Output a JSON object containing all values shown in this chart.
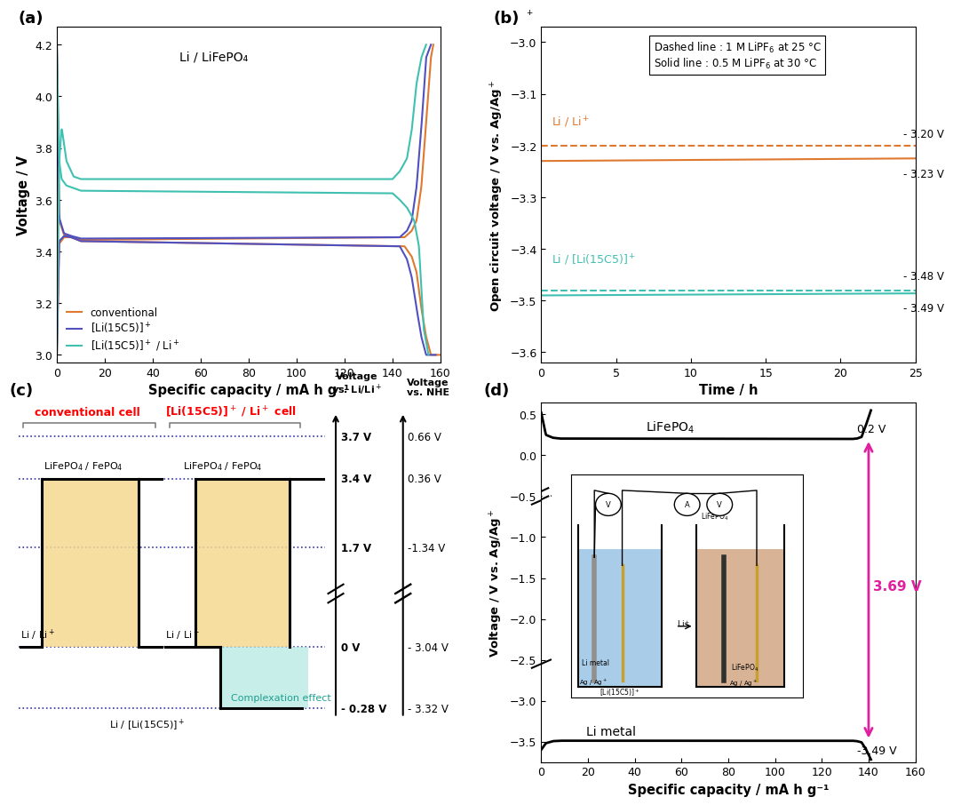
{
  "fig_width": 10.8,
  "fig_height": 8.9,
  "panel_a": {
    "xlabel": "Specific capacity / mA h g⁻¹",
    "ylabel": "Voltage / V",
    "xlim": [
      0,
      160
    ],
    "ylim": [
      2.97,
      4.27
    ],
    "xticks": [
      0,
      20,
      40,
      60,
      80,
      100,
      120,
      140,
      160
    ],
    "yticks": [
      3.0,
      3.2,
      3.4,
      3.6,
      3.8,
      4.0,
      4.2
    ],
    "conv_color": "#E07830",
    "li15c5_color": "#5050C0",
    "li15c5_li_color": "#40C0B0",
    "title_text": "Li / LiFePO₄"
  },
  "panel_b": {
    "xlabel": "Time / h",
    "ylabel": "Open circuit voltage / V vs. Ag/Ag",
    "xlim": [
      0,
      25
    ],
    "ylim": [
      -3.62,
      -2.97
    ],
    "xticks": [
      0,
      5,
      10,
      15,
      20,
      25
    ],
    "yticks": [
      -3.6,
      -3.5,
      -3.4,
      -3.3,
      -3.2,
      -3.1,
      -3.0
    ],
    "orange_color": "#E07830",
    "teal_color": "#40C0B0",
    "li_liplus_dashed_y": -3.2,
    "li_liplus_solid_y": -3.23,
    "li_15c5_dashed_y": -3.48,
    "li_15c5_solid_y": -3.49
  },
  "panel_d": {
    "xlabel": "Specific capacity / mA h g⁻¹",
    "ylabel": "Voltage / V vs. Ag/Ag",
    "xlim": [
      0,
      160
    ],
    "ylim": [
      -3.75,
      0.65
    ],
    "xticks": [
      0,
      20,
      40,
      60,
      80,
      100,
      120,
      140,
      160
    ],
    "cathode_y": 0.2,
    "anode_y": -3.49,
    "arrow_color": "#E020A0",
    "voltage_text": "3.69 V"
  }
}
